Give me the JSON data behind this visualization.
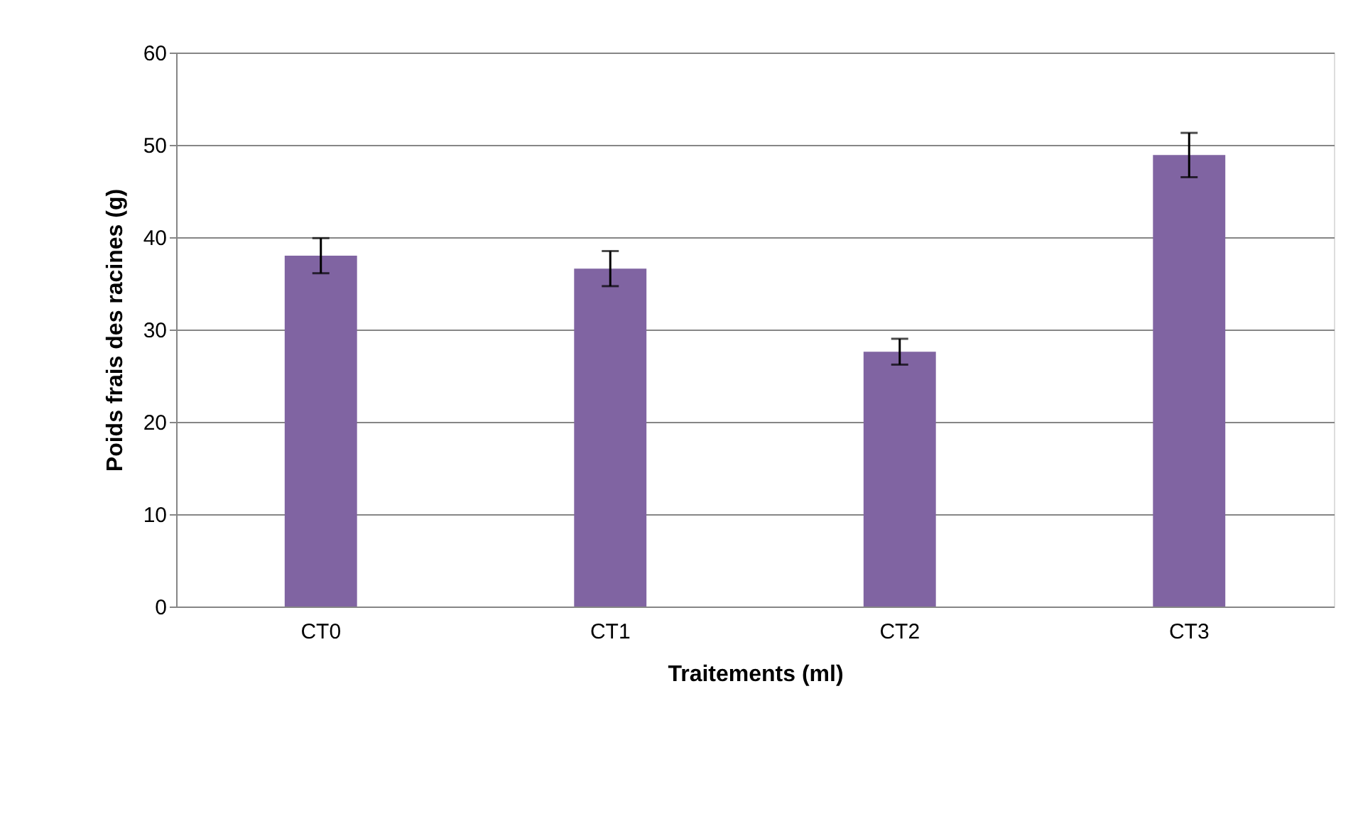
{
  "chart_data": {
    "type": "bar",
    "categories": [
      "CT0",
      "CT1",
      "CT2",
      "CT3"
    ],
    "values": [
      38.0,
      36.6,
      27.6,
      48.9
    ],
    "errors": [
      1.9,
      1.9,
      1.4,
      2.4
    ],
    "color": "#8064a2",
    "xlabel": "Traitements (ml)",
    "ylabel": "Poids frais des racines (g)",
    "ylim": [
      0,
      60
    ],
    "yticks": [
      0,
      10,
      20,
      30,
      40,
      50,
      60
    ],
    "grid": "y"
  }
}
